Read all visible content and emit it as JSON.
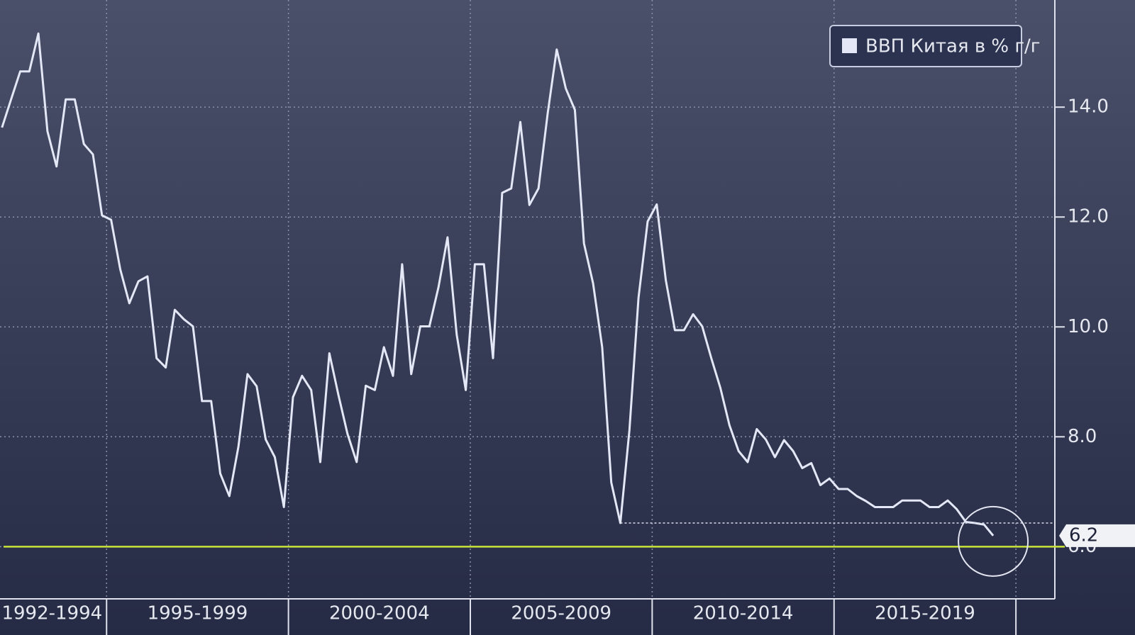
{
  "chart_data": {
    "type": "line",
    "x": [
      1992.125,
      1992.375,
      1992.625,
      1992.875,
      1993.125,
      1993.375,
      1993.625,
      1993.875,
      1994.125,
      1994.375,
      1994.625,
      1994.875,
      1995.125,
      1995.375,
      1995.625,
      1995.875,
      1996.125,
      1996.375,
      1996.625,
      1996.875,
      1997.125,
      1997.375,
      1997.625,
      1997.875,
      1998.125,
      1998.375,
      1998.625,
      1998.875,
      1999.125,
      1999.375,
      1999.625,
      1999.875,
      2000.125,
      2000.375,
      2000.625,
      2000.875,
      2001.125,
      2001.375,
      2001.625,
      2001.875,
      2002.125,
      2002.375,
      2002.625,
      2002.875,
      2003.125,
      2003.375,
      2003.625,
      2003.875,
      2004.125,
      2004.375,
      2004.625,
      2004.875,
      2005.125,
      2005.375,
      2005.625,
      2005.875,
      2006.125,
      2006.375,
      2006.625,
      2006.875,
      2007.125,
      2007.375,
      2007.625,
      2007.875,
      2008.125,
      2008.375,
      2008.625,
      2008.875,
      2009.125,
      2009.375,
      2009.625,
      2009.875,
      2010.125,
      2010.375,
      2010.625,
      2010.875,
      2011.125,
      2011.375,
      2011.625,
      2011.875,
      2012.125,
      2012.375,
      2012.625,
      2012.875,
      2013.125,
      2013.375,
      2013.625,
      2013.875,
      2014.125,
      2014.375,
      2014.625,
      2014.875,
      2015.125,
      2015.375,
      2015.625,
      2015.875,
      2016.125,
      2016.375,
      2016.625,
      2016.875,
      2017.125,
      2017.375,
      2017.625,
      2017.875,
      2018.125,
      2018.375,
      2018.625,
      2018.875,
      2019.125,
      2019.375
    ],
    "series": [
      {
        "name": "ВВП Китая в % г/г",
        "color": "#e4e8f6",
        "values": [
          13.63,
          14.14,
          14.65,
          14.65,
          15.34,
          13.56,
          12.92,
          14.14,
          14.14,
          13.33,
          13.14,
          12.03,
          11.95,
          11.05,
          10.43,
          10.83,
          10.92,
          9.43,
          9.26,
          10.31,
          10.14,
          10.01,
          8.65,
          8.65,
          7.33,
          6.92,
          7.82,
          9.14,
          8.92,
          7.95,
          7.63,
          6.72,
          8.72,
          9.11,
          8.85,
          7.54,
          9.52,
          8.76,
          8.05,
          7.54,
          8.93,
          8.85,
          9.63,
          9.11,
          11.14,
          9.14,
          10.01,
          10.01,
          10.72,
          11.63,
          9.86,
          8.85,
          11.14,
          11.14,
          9.43,
          12.44,
          12.52,
          13.73,
          12.22,
          12.52,
          13.88,
          15.05,
          14.34,
          13.95,
          11.52,
          10.79,
          9.63,
          7.17,
          6.43,
          8.12,
          10.53,
          11.92,
          12.23,
          10.85,
          9.94,
          9.94,
          10.23,
          10.01,
          9.43,
          8.89,
          8.21,
          7.74,
          7.54,
          8.14,
          7.95,
          7.63,
          7.94,
          7.74,
          7.43,
          7.52,
          7.12,
          7.24,
          7.05,
          7.05,
          6.92,
          6.83,
          6.72,
          6.72,
          6.72,
          6.84,
          6.84,
          6.84,
          6.72,
          6.72,
          6.84,
          6.68,
          6.45,
          6.43,
          6.4,
          6.2
        ]
      }
    ],
    "x_periods": [
      {
        "start": 1992,
        "end": 1995,
        "label": "1992-1994"
      },
      {
        "start": 1995,
        "end": 2000,
        "label": "1995-1999"
      },
      {
        "start": 2000,
        "end": 2005,
        "label": "2000-2004"
      },
      {
        "start": 2005,
        "end": 2010,
        "label": "2005-2009"
      },
      {
        "start": 2010,
        "end": 2015,
        "label": "2010-2014"
      },
      {
        "start": 2015,
        "end": 2020,
        "label": "2015-2019"
      }
    ],
    "xlim": [
      1992.07,
      2021.07
    ],
    "ylim": [
      5.05,
      15.95
    ],
    "yticks": [
      {
        "value": 6,
        "label": "6.0"
      },
      {
        "value": 8,
        "label": "8.0"
      },
      {
        "value": 10,
        "label": "10.0"
      },
      {
        "value": 12,
        "label": "12.0"
      },
      {
        "value": 14,
        "label": "14.0"
      }
    ],
    "reference_line": {
      "value": 6,
      "color": "#c9e23a"
    },
    "grid": true,
    "legend": "top-right"
  }
}
